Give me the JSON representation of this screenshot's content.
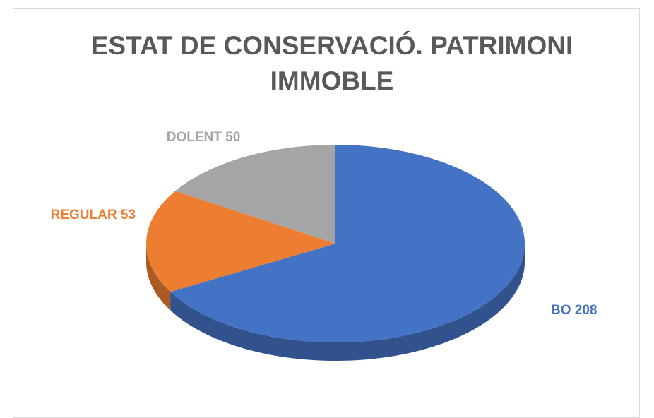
{
  "chart_data": {
    "type": "pie",
    "title": "ESTAT DE CONSERVACIÓ. PATRIMONI IMMOBLE",
    "categories": [
      "BO",
      "REGULAR",
      "DOLENT"
    ],
    "values": [
      208,
      53,
      50
    ],
    "colors": [
      "#4472c4",
      "#ed7d31",
      "#a5a5a5"
    ]
  }
}
